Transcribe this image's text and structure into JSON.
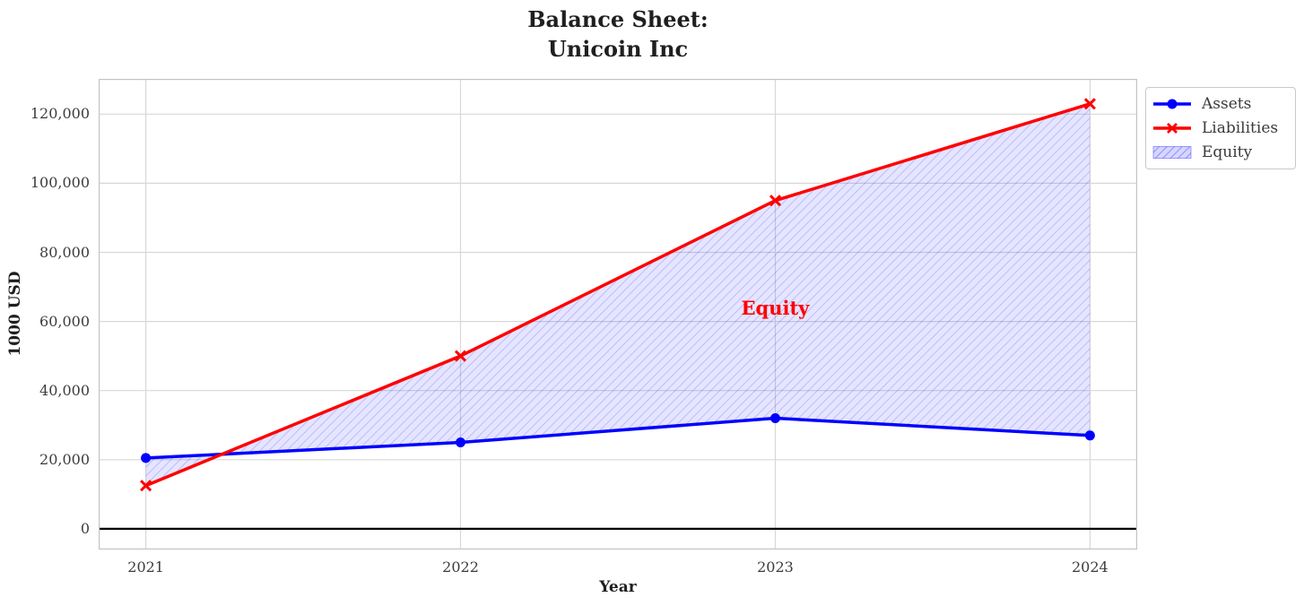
{
  "figure": {
    "title_line1": "Balance Sheet:",
    "title_line2": "Unicoin Inc"
  },
  "chart_data": {
    "type": "line",
    "title": "Balance Sheet: Unicoin Inc",
    "xlabel": "Year",
    "ylabel": "1000 USD",
    "x": [
      2021,
      2022,
      2023,
      2024
    ],
    "xtick_labels": [
      "2021",
      "2022",
      "2023",
      "2024"
    ],
    "series": [
      {
        "name": "Assets",
        "color": "#0000ff",
        "marker": "circle",
        "values": [
          20500,
          25000,
          32000,
          27000
        ]
      },
      {
        "name": "Liabilities",
        "color": "#ff0000",
        "marker": "x",
        "values": [
          12500,
          50000,
          95000,
          123000
        ]
      }
    ],
    "equity_area": {
      "label": "Equity",
      "between": [
        "Assets",
        "Liabilities"
      ],
      "fill_color": "#0000ff",
      "hatch": "///"
    },
    "annotation": {
      "text": "Equity",
      "x": 2023,
      "y": 63500,
      "color": "#ff0000"
    },
    "xlim": [
      2020.85,
      2024.15
    ],
    "ylim": [
      -6000,
      130200
    ],
    "yticks": [
      0,
      20000,
      40000,
      60000,
      80000,
      100000,
      120000
    ],
    "ytick_labels": [
      "0",
      "20,000",
      "40,000",
      "60,000",
      "80,000",
      "100,000",
      "120,000"
    ],
    "grid": true,
    "zero_line": true,
    "zero_line_color": "#000000",
    "legend": {
      "position": "upper-right-outside",
      "entries": [
        "Assets",
        "Liabilities",
        "Equity"
      ]
    },
    "style": {
      "grid_color": "#d8d8d8",
      "spine_color": "#c3c3c3",
      "tick_color": "#3c3c3c",
      "title_color": "#1f1f1f"
    }
  }
}
